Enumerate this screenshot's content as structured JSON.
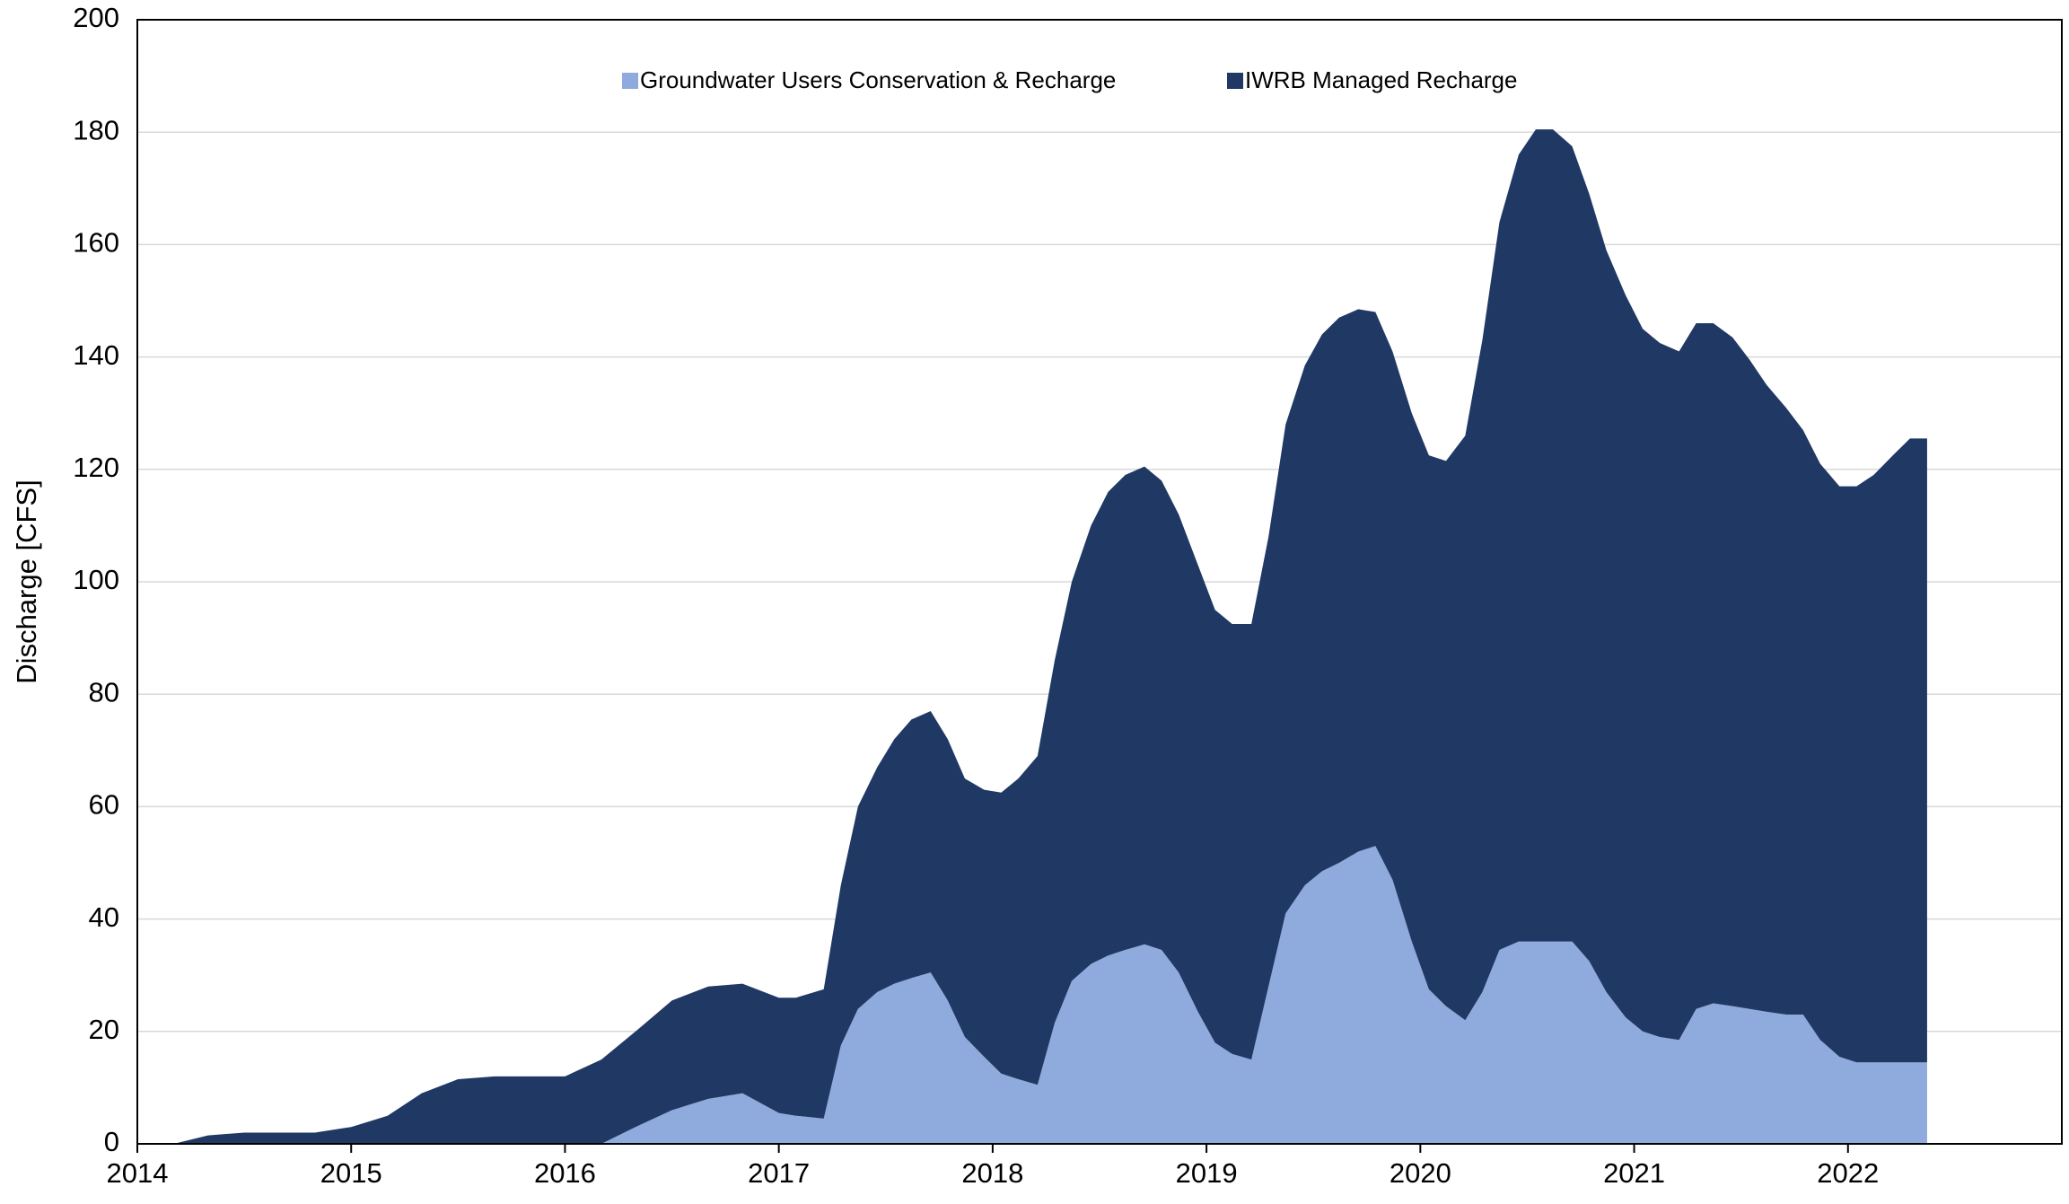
{
  "chart_data": {
    "type": "stacked_area",
    "y_label": "Discharge [CFS]",
    "x": [
      2014.17,
      2014.33,
      2014.5,
      2014.67,
      2014.83,
      2015.0,
      2015.17,
      2015.33,
      2015.5,
      2015.67,
      2015.83,
      2016.0,
      2016.17,
      2016.33,
      2016.5,
      2016.67,
      2016.83,
      2017.0,
      2017.08,
      2017.21,
      2017.29,
      2017.37,
      2017.46,
      2017.54,
      2017.62,
      2017.71,
      2017.79,
      2017.87,
      2017.96,
      2018.04,
      2018.12,
      2018.21,
      2018.29,
      2018.37,
      2018.46,
      2018.54,
      2018.62,
      2018.71,
      2018.79,
      2018.87,
      2018.96,
      2019.04,
      2019.12,
      2019.21,
      2019.29,
      2019.37,
      2019.46,
      2019.54,
      2019.62,
      2019.71,
      2019.79,
      2019.87,
      2019.96,
      2020.04,
      2020.12,
      2020.21,
      2020.29,
      2020.37,
      2020.46,
      2020.54,
      2020.62,
      2020.71,
      2020.79,
      2020.87,
      2020.96,
      2021.04,
      2021.12,
      2021.21,
      2021.29,
      2021.37,
      2021.46,
      2021.54,
      2021.62,
      2021.71,
      2021.79,
      2021.87,
      2021.96,
      2022.04,
      2022.12,
      2022.21,
      2022.29,
      2022.37
    ],
    "series": [
      {
        "name": "Groundwater Users Conservation & Recharge",
        "color": "#8faadc",
        "values": [
          0,
          0,
          0,
          0,
          0,
          0,
          0,
          0,
          0,
          0,
          0,
          0,
          0,
          3,
          6,
          8,
          9,
          5.5,
          5,
          4.5,
          17.5,
          24,
          27,
          28.5,
          29.5,
          30.5,
          25.5,
          19,
          15.5,
          12.5,
          11.5,
          10.5,
          21.5,
          29,
          32,
          33.5,
          34.5,
          35.5,
          34.5,
          30.5,
          23.5,
          18,
          16,
          15,
          28,
          41,
          46,
          48.5,
          50,
          52,
          53,
          47,
          36,
          27.5,
          24.5,
          22,
          27,
          34.5,
          36,
          36,
          36,
          36,
          32.5,
          27,
          22.5,
          20,
          19,
          18.5,
          24,
          25,
          24.5,
          24,
          23.5,
          23,
          23,
          18.5,
          15.5,
          14.5,
          14.5,
          14.5,
          14.5,
          14.5
        ]
      },
      {
        "name": "IWRB Managed Recharge",
        "color": "#203864",
        "values": [
          0,
          1.5,
          2,
          2,
          2,
          3,
          5,
          9,
          11.5,
          12,
          12,
          12,
          15,
          17,
          19.5,
          20,
          19.5,
          20.5,
          21,
          23,
          28.5,
          36,
          40,
          43.5,
          46,
          46.5,
          46.5,
          46,
          47.5,
          50,
          53.5,
          58.5,
          64.5,
          71,
          78,
          82.5,
          84.5,
          85,
          83.5,
          81.5,
          79.5,
          77,
          76.5,
          77.5,
          80,
          87,
          92.5,
          95.5,
          97,
          96.5,
          95,
          94,
          94,
          95,
          97,
          104,
          116,
          129.5,
          140,
          144.5,
          144.5,
          141.5,
          136.5,
          132,
          128.5,
          125,
          123.5,
          122.5,
          122,
          121,
          119,
          115.5,
          111.5,
          108,
          104,
          102.5,
          101.5,
          102.5,
          104.5,
          108,
          111,
          111
        ]
      }
    ],
    "xlim": [
      2014,
      2023
    ],
    "xticks": [
      2014,
      2015,
      2016,
      2017,
      2018,
      2019,
      2020,
      2021,
      2022
    ],
    "ylim": [
      0,
      200
    ],
    "yticks": [
      0,
      20,
      40,
      60,
      80,
      100,
      120,
      140,
      160,
      180,
      200
    ],
    "grid": true,
    "legend": "top"
  }
}
